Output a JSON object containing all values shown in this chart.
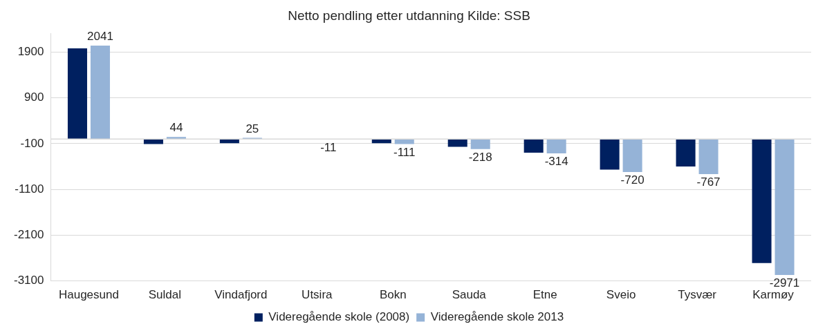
{
  "chart_data": {
    "type": "bar",
    "title": "Netto pendling etter utdanning Kilde: SSB",
    "categories": [
      "Haugesund",
      "Suldal",
      "Vindafjord",
      "Utsira",
      "Bokn",
      "Sauda",
      "Etne",
      "Sveio",
      "Tysvær",
      "Karmøy"
    ],
    "series": [
      {
        "name": "Videregående skole (2008)",
        "color": "#002060",
        "values": [
          1980,
          -110,
          -90,
          null,
          -90,
          -170,
          -300,
          -670,
          -600,
          -2710
        ]
      },
      {
        "name": "Videregående skole 2013",
        "color": "#95b3d7",
        "values": [
          2041,
          44,
          25,
          -11,
          -111,
          -218,
          -314,
          -720,
          -767,
          -2971
        ],
        "value_labels": [
          "2041",
          "44",
          "25",
          "-11",
          "-111",
          "-218",
          "-314",
          "-720",
          "-767",
          "-2971"
        ]
      }
    ],
    "ylim": [
      -3100,
      2300
    ],
    "yticks": [
      -3100,
      -2100,
      -1100,
      -100,
      900,
      1900
    ],
    "grid": "y",
    "legend": "bottom"
  }
}
